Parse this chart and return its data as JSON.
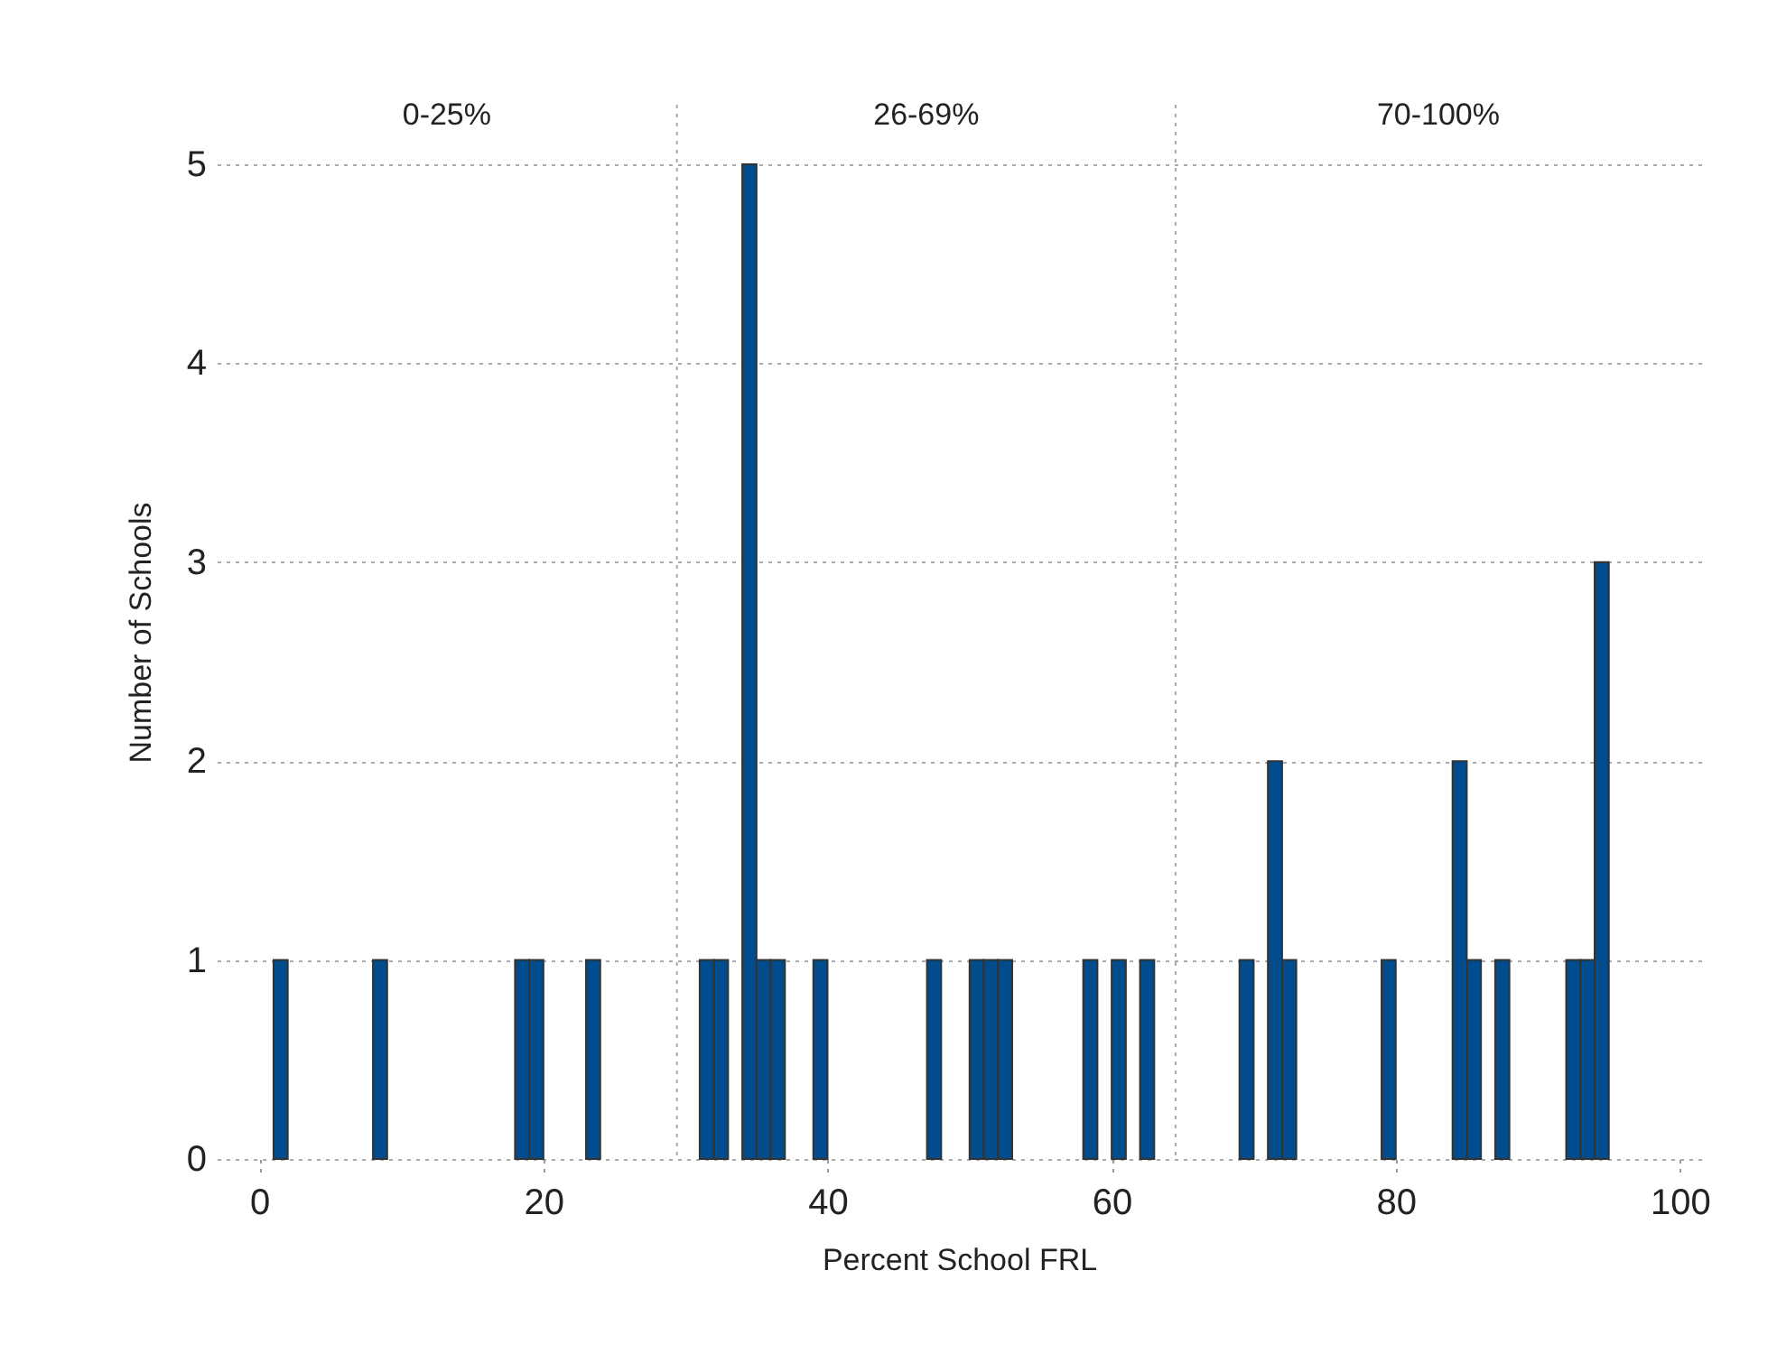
{
  "chart_data": {
    "type": "histogram",
    "xlabel": "Percent School FRL",
    "ylabel": "Number of Schools",
    "bins": [
      0,
      1,
      2,
      3,
      4,
      5,
      6,
      7,
      8,
      9,
      10,
      11,
      12,
      13,
      14,
      15,
      16,
      17,
      18,
      19,
      20,
      21,
      22,
      23,
      24,
      25,
      26,
      27,
      28,
      29,
      30,
      31,
      32,
      33,
      34,
      35,
      36,
      37,
      38,
      39,
      40,
      41,
      42,
      43,
      44,
      45,
      46,
      47,
      48,
      49,
      50,
      51,
      52,
      53,
      54,
      55,
      56,
      57,
      58,
      59,
      60,
      61,
      62,
      63,
      64,
      65,
      66,
      67,
      68,
      69,
      70,
      71,
      72,
      73,
      74,
      75,
      76,
      77,
      78,
      79,
      80,
      81,
      82,
      83,
      84,
      85,
      86,
      87,
      88,
      89,
      90,
      91,
      92,
      93,
      94,
      95,
      96,
      97,
      98,
      99,
      100
    ],
    "values": [
      0,
      1,
      0,
      0,
      0,
      0,
      0,
      0,
      1,
      0,
      0,
      0,
      0,
      0,
      0,
      0,
      0,
      0,
      1,
      1,
      0,
      0,
      0,
      1,
      0,
      0,
      0,
      0,
      0,
      0,
      0,
      1,
      1,
      0,
      5,
      1,
      1,
      0,
      0,
      1,
      0,
      0,
      0,
      0,
      0,
      0,
      0,
      1,
      0,
      0,
      1,
      1,
      1,
      0,
      0,
      0,
      0,
      0,
      1,
      0,
      1,
      0,
      1,
      0,
      0,
      0,
      0,
      0,
      0,
      1,
      0,
      2,
      1,
      0,
      0,
      0,
      0,
      0,
      0,
      1,
      0,
      0,
      0,
      0,
      2,
      1,
      0,
      1,
      0,
      0,
      0,
      0,
      1,
      1,
      3,
      0,
      0,
      0,
      0,
      0
    ],
    "color": "#004c8c",
    "xlim": [
      -3,
      101.5
    ],
    "xticks": [
      0,
      20,
      40,
      60,
      80,
      100
    ],
    "ylim": [
      0,
      5.3
    ],
    "yticks": [
      0,
      1,
      2,
      3,
      4,
      5
    ],
    "grid": "y",
    "ref_lines": [
      {
        "axis": "x",
        "value": 29.4,
        "color": "#aaaaaa",
        "line_style": "dotted"
      },
      {
        "axis": "x",
        "value": 64.5,
        "color": "#aaaaaa",
        "line_style": "dotted"
      }
    ],
    "annotations": [
      "0-25%",
      "26-69%",
      "70-100%"
    ]
  }
}
